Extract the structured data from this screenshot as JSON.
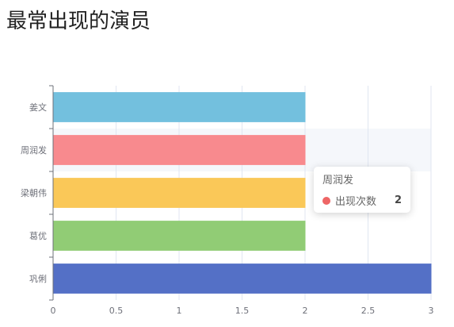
{
  "page": {
    "title": "最常出现的演员"
  },
  "chart_data": {
    "type": "bar",
    "orientation": "horizontal",
    "categories": [
      "姜文",
      "周润发",
      "梁朝伟",
      "葛优",
      "巩俐"
    ],
    "series": [
      {
        "name": "出现次数",
        "values": [
          2,
          2,
          2,
          2,
          3
        ],
        "colors": [
          "#73c0de",
          "#f88a8e",
          "#fac858",
          "#91cc75",
          "#5470c6"
        ]
      }
    ],
    "xlim": [
      0,
      3
    ],
    "x_ticks": [
      "0",
      "0.5",
      "1",
      "1.5",
      "2",
      "2.5",
      "3"
    ],
    "grid": true,
    "highlighted_category": "周润发",
    "highlight_color": "#f5f7fb"
  },
  "tooltip": {
    "title": "周润发",
    "series_name": "出现次数",
    "value": "2",
    "dot_color": "#ee6666"
  }
}
